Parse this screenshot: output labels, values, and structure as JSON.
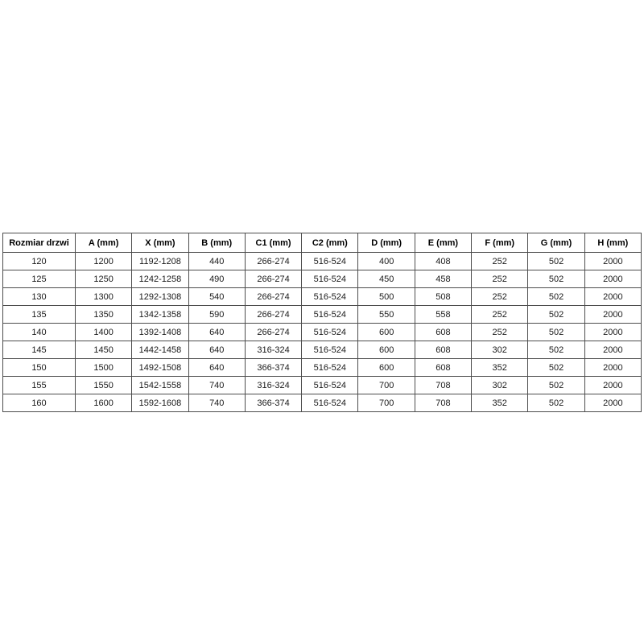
{
  "table": {
    "headers": [
      "Rozmiar drzwi",
      "A (mm)",
      "X (mm)",
      "B (mm)",
      "C1 (mm)",
      "C2 (mm)",
      "D (mm)",
      "E (mm)",
      "F (mm)",
      "G (mm)",
      "H (mm)"
    ],
    "rows": [
      [
        "120",
        "1200",
        "1192-1208",
        "440",
        "266-274",
        "516-524",
        "400",
        "408",
        "252",
        "502",
        "2000"
      ],
      [
        "125",
        "1250",
        "1242-1258",
        "490",
        "266-274",
        "516-524",
        "450",
        "458",
        "252",
        "502",
        "2000"
      ],
      [
        "130",
        "1300",
        "1292-1308",
        "540",
        "266-274",
        "516-524",
        "500",
        "508",
        "252",
        "502",
        "2000"
      ],
      [
        "135",
        "1350",
        "1342-1358",
        "590",
        "266-274",
        "516-524",
        "550",
        "558",
        "252",
        "502",
        "2000"
      ],
      [
        "140",
        "1400",
        "1392-1408",
        "640",
        "266-274",
        "516-524",
        "600",
        "608",
        "252",
        "502",
        "2000"
      ],
      [
        "145",
        "1450",
        "1442-1458",
        "640",
        "316-324",
        "516-524",
        "600",
        "608",
        "302",
        "502",
        "2000"
      ],
      [
        "150",
        "1500",
        "1492-1508",
        "640",
        "366-374",
        "516-524",
        "600",
        "608",
        "352",
        "502",
        "2000"
      ],
      [
        "155",
        "1550",
        "1542-1558",
        "740",
        "316-324",
        "516-524",
        "700",
        "708",
        "302",
        "502",
        "2000"
      ],
      [
        "160",
        "1600",
        "1592-1608",
        "740",
        "366-374",
        "516-524",
        "700",
        "708",
        "352",
        "502",
        "2000"
      ]
    ],
    "colors": {
      "border": "#4d4d4d",
      "text": "#1a1a1a",
      "background": "#ffffff"
    }
  }
}
